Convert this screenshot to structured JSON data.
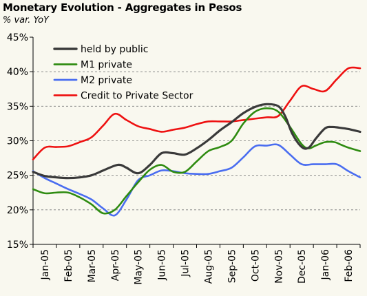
{
  "title": "Monetary Evolution -  Aggregates in Pesos",
  "subtitle": "% var. YoY",
  "chart_data": {
    "type": "line",
    "title": "Monetary Evolution -  Aggregates in Pesos",
    "subtitle": "% var. YoY",
    "xlabel": "",
    "ylabel": "",
    "ylim": [
      15,
      45
    ],
    "ytick_step": 5,
    "ytick_labels": [
      "15%",
      "20%",
      "25%",
      "30%",
      "35%",
      "40%",
      "45%"
    ],
    "grid": "horizontal dashed",
    "legend_position": "top-left",
    "categories": [
      "Jan-05",
      "Feb-05",
      "Mar-05",
      "Apr-05",
      "May-05",
      "Jun-05",
      "Jul-05",
      "Aug-05",
      "Sep-05",
      "Oct-05",
      "Nov-05",
      "Dec-05",
      "Jan-06",
      "Feb-06"
    ],
    "series": [
      {
        "name": "held by public",
        "color": "#3a3a3a",
        "x": [
          -0.5,
          0,
          0.5,
          1,
          1.5,
          2,
          2.5,
          3,
          3.25,
          3.5,
          4,
          4.5,
          5,
          5.5,
          6,
          6.5,
          7,
          7.5,
          8,
          8.5,
          9,
          9.5,
          10,
          10.3,
          10.6,
          11,
          11.3,
          11.6,
          12,
          12.3,
          12.6,
          13,
          13.5
        ],
        "values": [
          25.5,
          24.9,
          24.7,
          24.6,
          24.7,
          25.0,
          25.7,
          26.4,
          26.5,
          26.1,
          25.3,
          26.5,
          28.2,
          28.2,
          28.0,
          28.9,
          30.1,
          31.5,
          32.7,
          34.0,
          34.9,
          35.3,
          35.0,
          33.5,
          31.0,
          29.1,
          29.0,
          30.3,
          31.8,
          32.0,
          31.9,
          31.7,
          31.3
        ]
      },
      {
        "name": "M1 private",
        "color": "#2e8b10",
        "x": [
          -0.5,
          0,
          0.5,
          1,
          1.5,
          2,
          2.5,
          3,
          3.5,
          4,
          4.5,
          5,
          5.5,
          6,
          6.5,
          7,
          7.5,
          8,
          8.5,
          9,
          9.5,
          10,
          10.5,
          11,
          11.3,
          11.6,
          12,
          12.4,
          12.7,
          13,
          13.5
        ],
        "values": [
          23.0,
          22.4,
          22.5,
          22.5,
          21.8,
          20.8,
          19.5,
          20.0,
          22.0,
          24.0,
          25.8,
          26.5,
          25.5,
          25.5,
          27.0,
          28.5,
          29.1,
          30.0,
          32.5,
          34.2,
          34.7,
          34.2,
          32.0,
          29.5,
          28.9,
          29.3,
          29.8,
          29.8,
          29.4,
          29.0,
          28.5
        ]
      },
      {
        "name": "M2 private",
        "color": "#4a6df0",
        "x": [
          -0.5,
          0,
          0.5,
          1,
          1.5,
          2,
          2.5,
          3,
          3.5,
          4,
          4.5,
          5,
          5.5,
          6,
          6.5,
          7,
          7.5,
          8,
          8.5,
          9,
          9.5,
          10,
          10.5,
          11,
          11.5,
          12,
          12.5,
          13,
          13.5
        ],
        "values": [
          25.6,
          24.6,
          23.8,
          23.0,
          22.3,
          21.5,
          20.2,
          19.2,
          21.5,
          24.3,
          25.0,
          25.7,
          25.6,
          25.3,
          25.2,
          25.2,
          25.6,
          26.1,
          27.6,
          29.2,
          29.3,
          29.4,
          28.0,
          26.6,
          26.6,
          26.6,
          26.6,
          25.6,
          24.7
        ]
      },
      {
        "name": "Credit to Private Sector",
        "color": "#ee1111",
        "x": [
          -0.5,
          0,
          0.5,
          1,
          1.5,
          2,
          2.5,
          3,
          3.5,
          4,
          4.5,
          5,
          5.5,
          6,
          6.5,
          7,
          7.5,
          8,
          8.5,
          9,
          9.5,
          10,
          10.5,
          11,
          11.5,
          12,
          12.5,
          13,
          13.5
        ],
        "values": [
          27.3,
          29.0,
          29.1,
          29.2,
          29.8,
          30.5,
          32.2,
          33.9,
          33.0,
          32.1,
          31.7,
          31.3,
          31.6,
          31.9,
          32.4,
          32.8,
          32.8,
          32.8,
          33.0,
          33.2,
          33.4,
          33.6,
          35.8,
          37.9,
          37.5,
          37.2,
          38.9,
          40.5,
          40.5
        ]
      }
    ]
  }
}
